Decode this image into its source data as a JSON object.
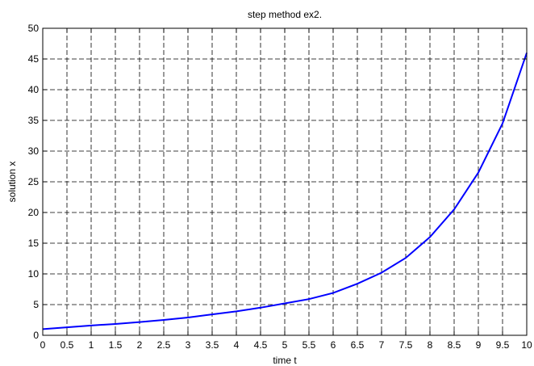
{
  "chart_data": {
    "type": "line",
    "title": "step method ex2.",
    "xlabel": "time t",
    "ylabel": "solution x",
    "xlim": [
      0,
      10
    ],
    "ylim": [
      0,
      50
    ],
    "grid": true,
    "x_ticks": [
      "0",
      "0.5",
      "1",
      "1.5",
      "2",
      "2.5",
      "3",
      "3.5",
      "4",
      "4.5",
      "5",
      "5.5",
      "6",
      "6.5",
      "7",
      "7.5",
      "8",
      "8.5",
      "9",
      "9.5",
      "10"
    ],
    "y_ticks": [
      "0",
      "5",
      "10",
      "15",
      "20",
      "25",
      "30",
      "35",
      "40",
      "45",
      "50"
    ],
    "series": [
      {
        "color": "#0000ff",
        "x": [
          0,
          0.5,
          1,
          1.5,
          2,
          2.5,
          3,
          3.5,
          4,
          4.5,
          5,
          5.5,
          6,
          6.5,
          7,
          7.5,
          8,
          8.5,
          9,
          9.5,
          10
        ],
        "y": [
          1.0,
          1.3,
          1.6,
          1.85,
          2.15,
          2.5,
          2.9,
          3.4,
          3.9,
          4.5,
          5.2,
          5.9,
          6.9,
          8.4,
          10.2,
          12.6,
          16.0,
          20.5,
          26.5,
          34.5,
          46.0
        ]
      }
    ]
  }
}
